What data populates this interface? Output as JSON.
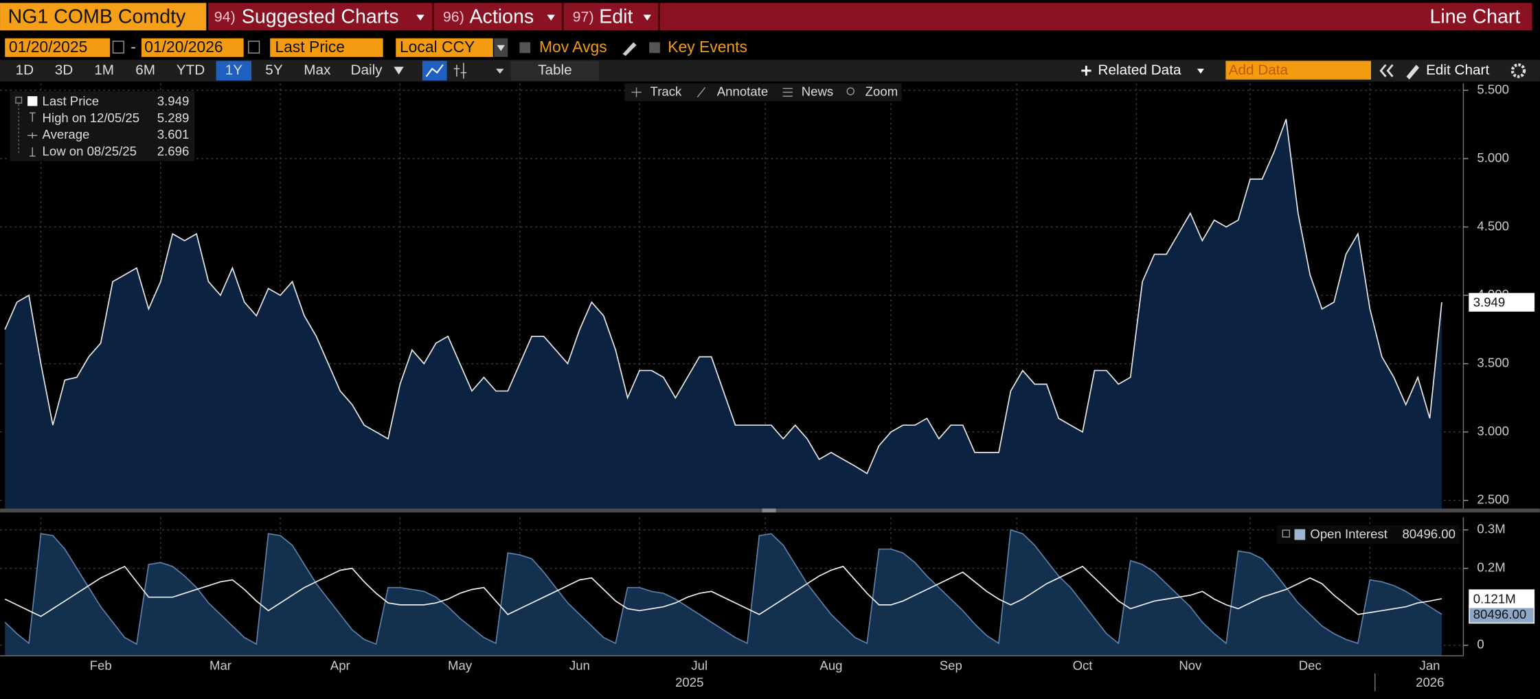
{
  "header": {
    "ticker": "NG1 COMB Comdty",
    "menus": [
      {
        "number": "94)",
        "label": "Suggested Charts"
      },
      {
        "number": "96)",
        "label": "Actions"
      },
      {
        "number": "97)",
        "label": "Edit"
      }
    ],
    "chart_kind": "Line Chart"
  },
  "controls": {
    "start_date": "01/20/2025",
    "date_separator": "-",
    "end_date": "01/20/2026",
    "field": "Last Price",
    "currency": "Local CCY",
    "options": [
      "Mov Avgs",
      "Key Events"
    ],
    "ranges": [
      "1D",
      "3D",
      "1M",
      "6M",
      "YTD",
      "1Y",
      "5Y",
      "Max"
    ],
    "selected_range": "1Y",
    "frequency": "Daily",
    "table": "Table",
    "related_data": "Related Data",
    "add_data": "Add Data",
    "edit_chart": "Edit Chart"
  },
  "toolbar": [
    "Track",
    "Annotate",
    "News",
    "Zoom"
  ],
  "stats": [
    {
      "label": "High on 12/05/25",
      "value": 5.289
    },
    {
      "label": "Average",
      "value": 3.601
    },
    {
      "label": "Low on 08/25/25",
      "value": 2.696
    }
  ],
  "years": [
    "2025",
    "2026"
  ],
  "chart_data": [
    {
      "type": "area",
      "series": [
        {
          "name": "Last Price",
          "color": "#e8e8e8",
          "fill": "#0b2241",
          "values": [
            3.75,
            3.95,
            4.0,
            3.5,
            3.05,
            3.38,
            3.4,
            3.55,
            3.65,
            4.1,
            4.15,
            4.2,
            3.9,
            4.1,
            4.45,
            4.4,
            4.45,
            4.1,
            4.0,
            4.2,
            3.95,
            3.85,
            4.05,
            4.0,
            4.1,
            3.85,
            3.7,
            3.5,
            3.3,
            3.2,
            3.05,
            3.0,
            2.95,
            3.35,
            3.6,
            3.5,
            3.65,
            3.7,
            3.5,
            3.3,
            3.4,
            3.3,
            3.3,
            3.5,
            3.7,
            3.7,
            3.6,
            3.5,
            3.75,
            3.95,
            3.85,
            3.6,
            3.25,
            3.45,
            3.45,
            3.4,
            3.25,
            3.4,
            3.55,
            3.55,
            3.3,
            3.05,
            3.05,
            3.05,
            3.05,
            2.95,
            3.05,
            2.95,
            2.8,
            2.85,
            2.8,
            2.75,
            2.696,
            2.9,
            3.0,
            3.05,
            3.05,
            3.1,
            2.95,
            3.05,
            3.05,
            2.85,
            2.85,
            2.85,
            3.3,
            3.45,
            3.35,
            3.35,
            3.1,
            3.05,
            3.0,
            3.45,
            3.45,
            3.35,
            3.4,
            4.1,
            4.3,
            4.3,
            4.45,
            4.6,
            4.4,
            4.55,
            4.5,
            4.55,
            4.85,
            4.85,
            5.05,
            5.289,
            4.6,
            4.15,
            3.9,
            3.95,
            4.3,
            4.45,
            3.9,
            3.55,
            3.4,
            3.2,
            3.4,
            3.1,
            3.949
          ]
        }
      ],
      "ylim": [
        2.44,
        5.55
      ],
      "yticks": [
        {
          "value": 2.5,
          "label": "2.500"
        },
        {
          "value": 3.0,
          "label": "3.000"
        },
        {
          "value": 3.5,
          "label": "3.500"
        },
        {
          "value": 4.0,
          "label": "4.000"
        },
        {
          "value": 4.5,
          "label": "4.500"
        },
        {
          "value": 5.0,
          "label": "5.000"
        },
        {
          "value": 5.5,
          "label": "5.500"
        }
      ],
      "grid": true
    },
    {
      "type": "area",
      "categories": [
        null,
        null,
        null,
        null,
        null,
        null,
        null,
        null,
        "Feb",
        null,
        null,
        null,
        null,
        null,
        null,
        null,
        null,
        null,
        "Mar",
        null,
        null,
        null,
        null,
        null,
        null,
        null,
        null,
        null,
        "Apr",
        null,
        null,
        null,
        null,
        null,
        null,
        null,
        null,
        null,
        "May",
        null,
        null,
        null,
        null,
        null,
        null,
        null,
        null,
        null,
        "Jun",
        null,
        null,
        null,
        null,
        null,
        null,
        null,
        null,
        null,
        "Jul",
        null,
        null,
        null,
        null,
        null,
        null,
        null,
        null,
        null,
        null,
        "Aug",
        null,
        null,
        null,
        null,
        null,
        null,
        null,
        null,
        null,
        "Sep",
        null,
        null,
        null,
        null,
        null,
        null,
        null,
        null,
        null,
        null,
        "Oct",
        null,
        null,
        null,
        null,
        null,
        null,
        null,
        null,
        "Nov",
        null,
        null,
        null,
        null,
        null,
        null,
        null,
        null,
        null,
        "Dec",
        null,
        null,
        null,
        null,
        null,
        null,
        null,
        null,
        null,
        "Jan",
        null
      ],
      "series": [
        {
          "name": "Open Interest",
          "color": "#5d80a8",
          "fill": "#14304f",
          "values": [
            60000,
            30000,
            5000,
            290000,
            285000,
            250000,
            200000,
            150000,
            100000,
            60000,
            20000,
            3000,
            210000,
            215000,
            205000,
            180000,
            150000,
            110000,
            80000,
            50000,
            20000,
            3000,
            290000,
            285000,
            260000,
            210000,
            160000,
            120000,
            80000,
            40000,
            15000,
            3000,
            150000,
            150000,
            145000,
            140000,
            125000,
            100000,
            70000,
            45000,
            20000,
            5000,
            240000,
            235000,
            225000,
            190000,
            150000,
            110000,
            80000,
            50000,
            20000,
            5000,
            150000,
            150000,
            140000,
            135000,
            120000,
            100000,
            80000,
            60000,
            40000,
            20000,
            5000,
            285000,
            290000,
            260000,
            210000,
            160000,
            120000,
            80000,
            50000,
            20000,
            5000,
            250000,
            250000,
            240000,
            215000,
            180000,
            150000,
            120000,
            90000,
            55000,
            25000,
            5000,
            300000,
            290000,
            260000,
            220000,
            180000,
            150000,
            110000,
            70000,
            30000,
            5000,
            220000,
            210000,
            190000,
            160000,
            130000,
            100000,
            60000,
            30000,
            5000,
            245000,
            240000,
            225000,
            190000,
            150000,
            110000,
            80000,
            50000,
            30000,
            15000,
            5000,
            170000,
            165000,
            155000,
            140000,
            120000,
            100000,
            80496
          ],
          "value_labels": [
            null,
            null,
            null,
            null,
            null,
            null,
            null,
            null,
            null,
            null,
            null,
            null,
            null,
            null,
            null,
            null,
            null,
            null,
            null,
            null,
            null,
            null,
            null,
            null,
            null,
            null,
            null,
            null,
            null,
            null,
            null,
            null,
            null,
            null,
            null,
            null,
            null,
            null,
            null,
            null,
            null,
            null,
            null,
            null,
            null,
            null,
            null,
            null,
            null,
            null,
            null,
            null,
            null,
            null,
            null,
            null,
            null,
            null,
            null,
            null,
            null,
            null,
            null,
            null,
            null,
            null,
            null,
            null,
            null,
            null,
            null,
            null,
            null,
            null,
            null,
            null,
            null,
            null,
            null,
            null,
            null,
            null,
            null,
            null,
            null,
            null,
            null,
            null,
            null,
            null,
            null,
            null,
            null,
            null,
            null,
            null,
            null,
            null,
            null,
            null,
            null,
            null,
            null,
            null,
            null,
            null,
            null,
            null,
            null,
            null,
            null,
            null,
            null,
            null,
            null,
            null,
            null,
            null,
            null,
            null,
            "80496.00"
          ]
        },
        {
          "color": "#f0f0f0",
          "values": [
            120000,
            105000,
            90000,
            75000,
            95000,
            115000,
            135000,
            155000,
            175000,
            190000,
            205000,
            165000,
            125000,
            125000,
            125000,
            135000,
            145000,
            155000,
            165000,
            170000,
            145000,
            115000,
            90000,
            110000,
            130000,
            150000,
            165000,
            180000,
            195000,
            200000,
            165000,
            135000,
            110000,
            105000,
            105000,
            105000,
            110000,
            120000,
            135000,
            145000,
            150000,
            115000,
            80000,
            95000,
            110000,
            125000,
            140000,
            155000,
            170000,
            175000,
            145000,
            115000,
            95000,
            90000,
            95000,
            100000,
            110000,
            125000,
            135000,
            140000,
            125000,
            110000,
            95000,
            80000,
            100000,
            120000,
            140000,
            160000,
            180000,
            195000,
            205000,
            170000,
            135000,
            105000,
            105000,
            115000,
            130000,
            145000,
            160000,
            175000,
            190000,
            165000,
            140000,
            120000,
            105000,
            120000,
            140000,
            160000,
            175000,
            190000,
            205000,
            175000,
            145000,
            115000,
            95000,
            105000,
            115000,
            120000,
            125000,
            130000,
            140000,
            120000,
            105000,
            95000,
            110000,
            125000,
            135000,
            145000,
            160000,
            175000,
            160000,
            130000,
            105000,
            80000,
            85000,
            90000,
            95000,
            100000,
            110000,
            115000,
            121000
          ],
          "value_labels": [
            null,
            null,
            null,
            null,
            null,
            null,
            null,
            null,
            null,
            null,
            null,
            null,
            null,
            null,
            null,
            null,
            null,
            null,
            null,
            null,
            null,
            null,
            null,
            null,
            null,
            null,
            null,
            null,
            null,
            null,
            null,
            null,
            null,
            null,
            null,
            null,
            null,
            null,
            null,
            null,
            null,
            null,
            null,
            null,
            null,
            null,
            null,
            null,
            null,
            null,
            null,
            null,
            null,
            null,
            null,
            null,
            null,
            null,
            null,
            null,
            null,
            null,
            null,
            null,
            null,
            null,
            null,
            null,
            null,
            null,
            null,
            null,
            null,
            null,
            null,
            null,
            null,
            null,
            null,
            null,
            null,
            null,
            null,
            null,
            null,
            null,
            null,
            null,
            null,
            null,
            null,
            null,
            null,
            null,
            null,
            null,
            null,
            null,
            null,
            null,
            null,
            null,
            null,
            null,
            null,
            null,
            null,
            null,
            null,
            null,
            null,
            null,
            null,
            null,
            null,
            null,
            null,
            null,
            null,
            null,
            "0.121M"
          ]
        }
      ],
      "ylim": [
        -27500,
        332500
      ],
      "yticks": [
        0,
        {
          "value": 200000,
          "label": "0.2M"
        },
        {
          "value": 300000,
          "label": "0.3M"
        }
      ],
      "grid": true
    }
  ]
}
